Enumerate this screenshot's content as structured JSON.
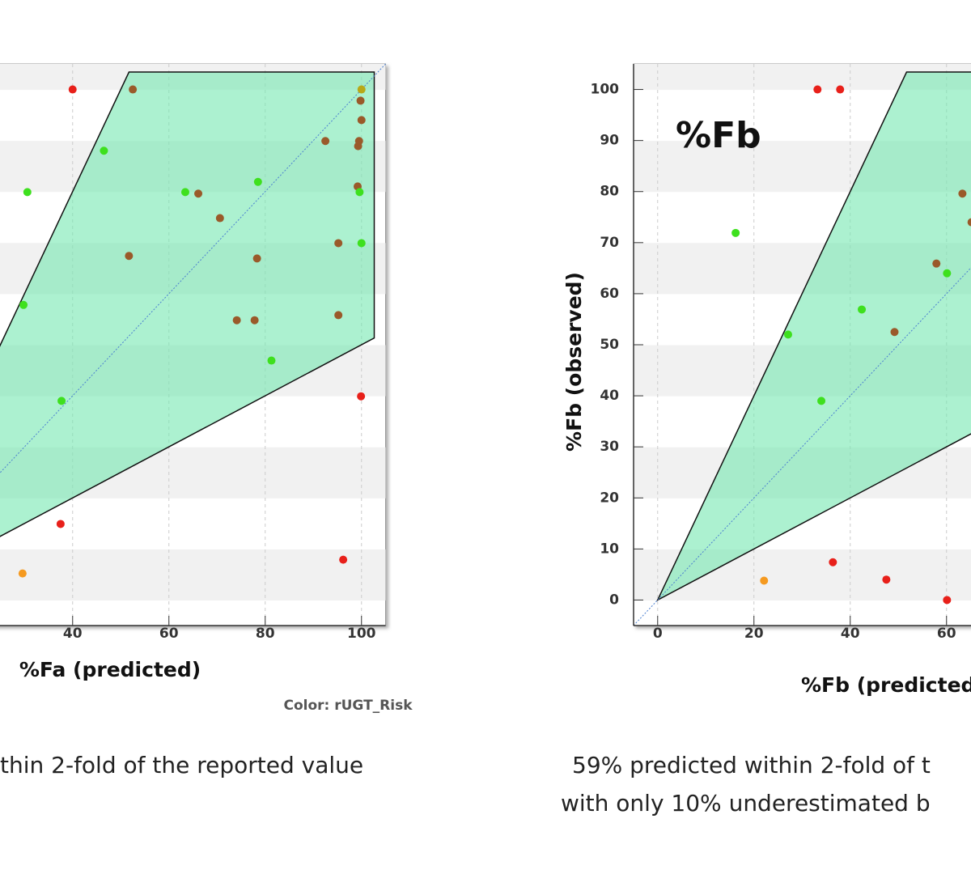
{
  "chart_data": [
    {
      "type": "scatter",
      "x_label": "%Fa (predicted)",
      "note": "Color: rUGT_Risk",
      "caption": [
        "thin 2-fold of the reported value"
      ],
      "xlim": [
        -5,
        105
      ],
      "ylim": [
        -5,
        105
      ],
      "xticks": [
        40,
        60,
        80,
        100
      ],
      "x": [
        40,
        52.5,
        100,
        99.8,
        100,
        46.5,
        92.5,
        99.5,
        99.3,
        30.6,
        63.4,
        66.1,
        78.5,
        99.2,
        99.6,
        70.6,
        95.2,
        100,
        51.7,
        78.3,
        29.8,
        74.1,
        77.8,
        95.2,
        81.3,
        99.9,
        37.7,
        37.5,
        96.2,
        29.6
      ],
      "values": [
        100,
        100,
        100,
        97.8,
        94,
        88,
        89.9,
        89.9,
        88.9,
        79.9,
        79.9,
        79.6,
        81.9,
        81,
        79.9,
        74.8,
        69.9,
        69.9,
        67.4,
        66.9,
        57.8,
        54.8,
        54.8,
        55.8,
        46.9,
        39.9,
        39,
        14.9,
        7.9,
        5.2
      ],
      "colors": [
        "#e8201a",
        "#9a5a2a",
        "#b8a818",
        "#9a5a2a",
        "#9a5a2a",
        "#3ee01e",
        "#9a5a2a",
        "#9a5a2a",
        "#9a5a2a",
        "#3ee01e",
        "#3ee01e",
        "#9a5a2a",
        "#3ee01e",
        "#9a5a2a",
        "#3ee01e",
        "#9a5a2a",
        "#9a5a2a",
        "#3ee01e",
        "#9a5a2a",
        "#9a5a2a",
        "#3ee01e",
        "#9a5a2a",
        "#9a5a2a",
        "#9a5a2a",
        "#3ee01e",
        "#e8201a",
        "#3ee01e",
        "#e8201a",
        "#e8201a",
        "#f59a20"
      ]
    },
    {
      "type": "scatter",
      "annotation": "%Fb",
      "y_label": "%Fb (observed)",
      "x_label": "%Fb (predicted",
      "caption": [
        "59% predicted within 2-fold of t",
        "with only 10% underestimated b"
      ],
      "xlim": [
        -5,
        105
      ],
      "ylim": [
        -5,
        105
      ],
      "xticks": [
        0,
        20,
        40,
        60
      ],
      "yticks": [
        0,
        10,
        20,
        30,
        40,
        50,
        60,
        70,
        80,
        90,
        100
      ],
      "x": [
        33.2,
        37.9,
        16.2,
        63.3,
        65.2,
        57.9,
        60.1,
        42.4,
        27.1,
        49.2,
        34,
        36.4,
        22.1,
        47.5,
        60.1
      ],
      "values": [
        100,
        100,
        71.9,
        79.6,
        74,
        65.9,
        64,
        56.9,
        52,
        52.5,
        39,
        7.4,
        3.8,
        4,
        0
      ],
      "colors": [
        "#e8201a",
        "#e8201a",
        "#3ee01e",
        "#9a5a2a",
        "#9a5a2a",
        "#9a5a2a",
        "#3ee01e",
        "#3ee01e",
        "#3ee01e",
        "#9a5a2a",
        "#3ee01e",
        "#e8201a",
        "#f59a20",
        "#e8201a",
        "#e8201a"
      ]
    }
  ]
}
